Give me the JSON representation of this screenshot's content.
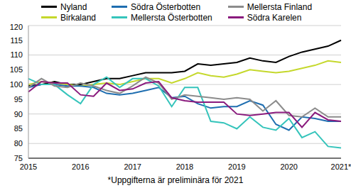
{
  "chart_data": {
    "type": "line",
    "footnote": "*Uppgifterna är preliminära för 2021",
    "categories": [
      "2015",
      null,
      null,
      null,
      "2016",
      null,
      null,
      null,
      "2017",
      null,
      null,
      null,
      "2018",
      null,
      null,
      null,
      "2019",
      null,
      null,
      null,
      "2020",
      null,
      null,
      null,
      "2021*"
    ],
    "series": [
      {
        "name": "Nyland",
        "color": "#000000",
        "values": [
          99.5,
          100,
          101,
          100,
          100,
          101,
          102,
          102,
          103,
          104,
          104,
          104,
          104.5,
          107,
          106.5,
          107,
          107.5,
          109,
          108,
          107.5,
          109.5,
          111,
          112,
          113,
          115
        ]
      },
      {
        "name": "Birkaland",
        "color": "#c5d82c",
        "values": [
          100,
          101,
          100.5,
          100,
          99.5,
          100,
          100.5,
          100,
          101,
          102,
          102,
          100.5,
          102,
          104,
          103,
          102.5,
          103.5,
          105,
          104.5,
          104,
          104.5,
          105.5,
          106.5,
          108,
          107.5
        ]
      },
      {
        "name": "Södra Österbotten",
        "color": "#1f6eb0",
        "values": [
          99,
          100,
          100,
          99.5,
          99.5,
          99,
          97,
          96.5,
          97,
          98,
          99,
          95.5,
          96,
          93.5,
          92,
          92.5,
          92.5,
          94.5,
          93,
          86.5,
          84.5,
          89,
          88.5,
          87.5,
          87.5
        ]
      },
      {
        "name": "Mellersta Österbotten",
        "color": "#35c4bb",
        "values": [
          102,
          100,
          100,
          96.5,
          93.5,
          100,
          102.5,
          99,
          102,
          102,
          99.5,
          92.5,
          99,
          99,
          87.5,
          87,
          85,
          89,
          85.5,
          84.5,
          88.5,
          82,
          84,
          79,
          78.5
        ]
      },
      {
        "name": "Mellersta Finland",
        "color": "#8c8c8c",
        "values": [
          99,
          102,
          99.5,
          99,
          100.5,
          99.5,
          98,
          97,
          99.5,
          102.5,
          100.5,
          95,
          96.5,
          96,
          95.5,
          95,
          95.5,
          95,
          91,
          94.5,
          89.5,
          89,
          92,
          89,
          89
        ]
      },
      {
        "name": "Södra Karelen",
        "color": "#8a1a7d",
        "values": [
          97.5,
          101,
          100.5,
          100.5,
          96.5,
          96,
          100.5,
          98,
          98.5,
          100.5,
          101,
          95.5,
          94.5,
          94,
          94,
          94,
          90,
          89.5,
          90,
          90.5,
          90.5,
          85.5,
          90.5,
          88,
          87.5
        ]
      }
    ],
    "ylim": [
      75,
      120
    ],
    "yticks": [
      75,
      80,
      85,
      90,
      95,
      100,
      105,
      110,
      115,
      120
    ],
    "grid": true,
    "legend": "top-left"
  }
}
